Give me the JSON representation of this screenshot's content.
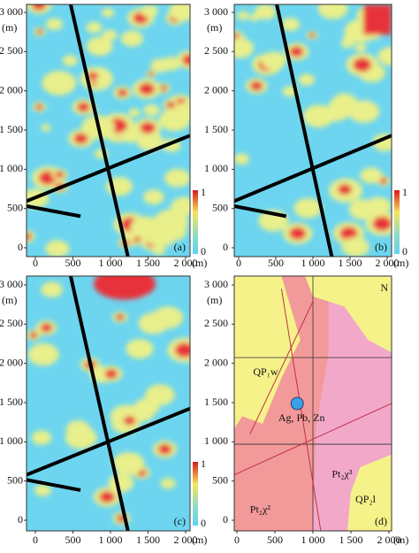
{
  "axis_unit": "(m)",
  "yticks": [
    {
      "value": 0,
      "label": "0"
    },
    500,
    {
      "value": 1000,
      "label": "1 000"
    },
    {
      "value": 1500,
      "label": "1 500"
    },
    {
      "value": 2000,
      "label": "2 000"
    },
    {
      "value": 2500,
      "label": "2 500"
    },
    {
      "value": 3000,
      "label": "3 000"
    }
  ],
  "xticks": [
    0,
    500,
    {
      "value": 1000,
      "label": "1 000"
    },
    {
      "value": 1500,
      "label": "1 500"
    },
    {
      "value": 2000,
      "label": "2 000"
    }
  ],
  "panels": [
    {
      "label": "(a)",
      "colorbar_max": "1",
      "colorbar_min": "0"
    },
    {
      "label": "(b)",
      "colorbar_max": "1",
      "colorbar_min": "0"
    },
    {
      "label": "(c)",
      "colorbar_max": "1",
      "colorbar_min": "0"
    },
    {
      "label": "(d)"
    }
  ],
  "map_labels": {
    "north": "N",
    "qp1w": "QP₁w",
    "deposit": "Ag, Pb, Zn",
    "pt2x3": "Pt₂χ³",
    "pt2x2": "Pt₂χ²",
    "qp2l": "QP₂l"
  }
}
